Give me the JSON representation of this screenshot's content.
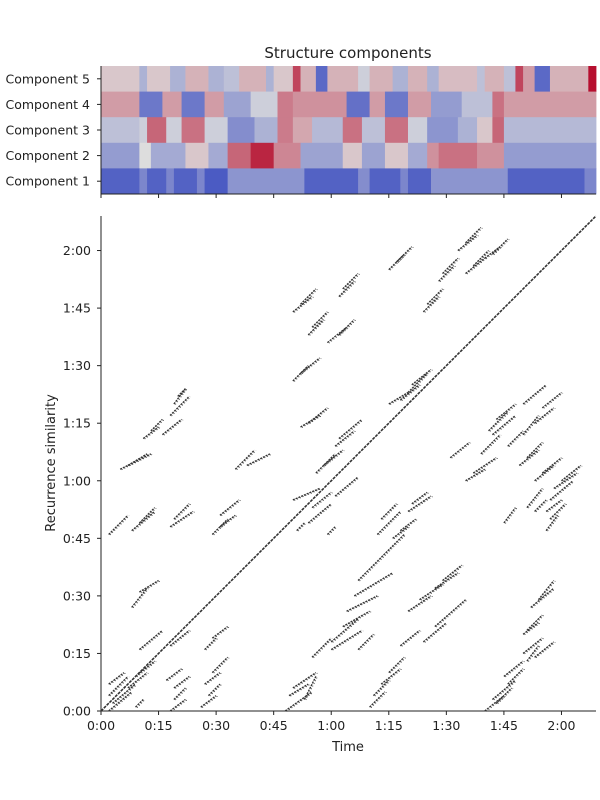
{
  "colors": {
    "cool_low": "#3b4cc0",
    "mid": "#dddddd",
    "warm_high": "#b40426",
    "ink": "#222222",
    "recurrence_mark": "#333333"
  },
  "chart_data": [
    {
      "type": "heatmap",
      "title": "Structure components",
      "colormap": "coolwarm",
      "row_labels": [
        "Component 5",
        "Component 4",
        "Component 3",
        "Component 2",
        "Component 1"
      ],
      "x_range_seconds": [
        0,
        129
      ],
      "value_range": [
        -1,
        1
      ],
      "x_ticks_shared_with_recurrence": true,
      "segments": {
        "Component 5": [
          [
            0,
            10,
            0.1
          ],
          [
            10,
            12,
            -0.3
          ],
          [
            12,
            18,
            0.1
          ],
          [
            18,
            22,
            -0.3
          ],
          [
            22,
            28,
            0.2
          ],
          [
            28,
            32,
            -0.3
          ],
          [
            32,
            36,
            -0.2
          ],
          [
            36,
            43,
            0.2
          ],
          [
            43,
            45,
            -0.3
          ],
          [
            45,
            50,
            0.1
          ],
          [
            50,
            52,
            0.7
          ],
          [
            52,
            56,
            0.2
          ],
          [
            56,
            59,
            -0.8
          ],
          [
            59,
            67,
            0.2
          ],
          [
            67,
            70,
            -0.1
          ],
          [
            70,
            76,
            0.2
          ],
          [
            76,
            80,
            -0.3
          ],
          [
            80,
            85,
            0.2
          ],
          [
            85,
            88,
            -0.3
          ],
          [
            88,
            98,
            0.15
          ],
          [
            98,
            100,
            -0.2
          ],
          [
            100,
            105,
            0.2
          ],
          [
            105,
            108,
            -0.2
          ],
          [
            108,
            110,
            0.7
          ],
          [
            110,
            113,
            0.3
          ],
          [
            113,
            117,
            -0.8
          ],
          [
            117,
            127,
            0.2
          ],
          [
            127,
            129,
            0.95
          ]
        ],
        "Component 4": [
          [
            0,
            10,
            0.3
          ],
          [
            10,
            16,
            -0.7
          ],
          [
            16,
            21,
            0.3
          ],
          [
            21,
            27,
            -0.7
          ],
          [
            27,
            32,
            0.3
          ],
          [
            32,
            39,
            -0.4
          ],
          [
            39,
            46,
            -0.1
          ],
          [
            46,
            50,
            0.45
          ],
          [
            50,
            64,
            0.35
          ],
          [
            64,
            70,
            -0.75
          ],
          [
            70,
            74,
            0.3
          ],
          [
            74,
            80,
            -0.7
          ],
          [
            80,
            86,
            0.3
          ],
          [
            86,
            94,
            -0.45
          ],
          [
            94,
            102,
            -0.2
          ],
          [
            102,
            105,
            0.5
          ],
          [
            105,
            129,
            0.3
          ]
        ],
        "Component 3": [
          [
            0,
            10,
            -0.2
          ],
          [
            10,
            12,
            -0.1
          ],
          [
            12,
            17,
            0.55
          ],
          [
            17,
            21,
            -0.1
          ],
          [
            21,
            27,
            0.5
          ],
          [
            27,
            33,
            -0.1
          ],
          [
            33,
            40,
            -0.55
          ],
          [
            40,
            46,
            -0.3
          ],
          [
            46,
            50,
            0.45
          ],
          [
            50,
            55,
            0.25
          ],
          [
            55,
            63,
            -0.25
          ],
          [
            63,
            68,
            0.5
          ],
          [
            68,
            74,
            -0.2
          ],
          [
            74,
            80,
            0.5
          ],
          [
            80,
            85,
            -0.1
          ],
          [
            85,
            93,
            -0.5
          ],
          [
            93,
            98,
            -0.3
          ],
          [
            98,
            102,
            0.1
          ],
          [
            102,
            105,
            0.55
          ],
          [
            105,
            129,
            -0.25
          ]
        ],
        "Component 2": [
          [
            0,
            10,
            -0.45
          ],
          [
            10,
            13,
            0.0
          ],
          [
            13,
            22,
            -0.35
          ],
          [
            22,
            28,
            0.1
          ],
          [
            28,
            33,
            -0.35
          ],
          [
            33,
            39,
            0.55
          ],
          [
            39,
            45,
            0.85
          ],
          [
            45,
            52,
            0.4
          ],
          [
            52,
            63,
            -0.4
          ],
          [
            63,
            68,
            0.1
          ],
          [
            68,
            74,
            -0.4
          ],
          [
            74,
            80,
            0.1
          ],
          [
            80,
            85,
            -0.35
          ],
          [
            85,
            88,
            0.35
          ],
          [
            88,
            98,
            0.5
          ],
          [
            98,
            105,
            0.35
          ],
          [
            105,
            129,
            -0.45
          ]
        ],
        "Component 1": [
          [
            0,
            10,
            -0.85
          ],
          [
            10,
            12,
            -0.6
          ],
          [
            12,
            17,
            -0.85
          ],
          [
            17,
            19,
            -0.6
          ],
          [
            19,
            25,
            -0.85
          ],
          [
            25,
            27,
            -0.6
          ],
          [
            27,
            33,
            -0.9
          ],
          [
            33,
            53,
            -0.5
          ],
          [
            53,
            67,
            -0.85
          ],
          [
            67,
            70,
            -0.55
          ],
          [
            70,
            78,
            -0.85
          ],
          [
            78,
            80,
            -0.6
          ],
          [
            80,
            86,
            -0.85
          ],
          [
            86,
            106,
            -0.5
          ],
          [
            106,
            126,
            -0.85
          ],
          [
            126,
            129,
            -0.6
          ]
        ]
      }
    },
    {
      "type": "scatter",
      "subtype": "recurrence_matrix",
      "xlabel": "Time",
      "ylabel": "Recurrence similarity",
      "x_range_seconds": [
        0,
        129
      ],
      "y_range_seconds": [
        0,
        129
      ],
      "x_tick_labels": [
        "0:00",
        "0:15",
        "0:30",
        "0:45",
        "1:00",
        "1:15",
        "1:30",
        "1:45",
        "2:00"
      ],
      "y_tick_labels": [
        "0:00",
        "0:15",
        "0:30",
        "0:45",
        "1:00",
        "1:15",
        "1:30",
        "1:45",
        "2:00"
      ],
      "tick_values_seconds": [
        0,
        15,
        30,
        45,
        60,
        75,
        90,
        105,
        120
      ],
      "grid": false,
      "main_diagonal": [
        [
          0,
          0
        ],
        [
          129,
          129
        ]
      ],
      "off_diagonal_segments": [
        [
          2,
          0,
          8,
          5
        ],
        [
          3,
          2,
          9,
          7
        ],
        [
          2,
          4,
          7,
          9
        ],
        [
          9,
          1,
          11,
          3
        ],
        [
          2,
          7,
          6,
          10
        ],
        [
          7,
          6,
          12,
          10
        ],
        [
          9,
          9,
          14,
          13
        ],
        [
          18,
          0,
          22,
          3
        ],
        [
          19,
          3,
          22,
          6
        ],
        [
          19,
          6,
          23,
          9
        ],
        [
          17,
          8,
          21,
          11
        ],
        [
          26,
          1,
          30,
          4
        ],
        [
          28,
          4,
          31,
          7
        ],
        [
          27,
          7,
          31,
          10
        ],
        [
          29,
          10,
          33,
          14
        ],
        [
          10,
          16,
          16,
          21
        ],
        [
          18,
          17,
          23,
          21
        ],
        [
          27,
          16,
          30,
          19
        ],
        [
          29,
          19,
          33,
          22
        ],
        [
          8,
          27,
          12,
          32
        ],
        [
          10,
          31,
          15,
          34
        ],
        [
          48,
          0,
          55,
          5
        ],
        [
          49,
          4,
          54,
          7
        ],
        [
          53,
          3,
          56,
          9
        ],
        [
          50,
          6,
          56,
          10
        ],
        [
          70,
          1,
          74,
          5
        ],
        [
          71,
          4,
          75,
          8
        ],
        [
          73,
          7,
          78,
          11
        ],
        [
          75,
          10,
          79,
          14
        ],
        [
          55,
          14,
          60,
          19
        ],
        [
          60,
          16,
          68,
          21
        ],
        [
          67,
          16,
          71,
          20
        ],
        [
          60,
          18,
          67,
          24
        ],
        [
          63,
          22,
          70,
          26
        ],
        [
          64,
          26,
          72,
          30
        ],
        [
          66,
          30,
          76,
          36
        ],
        [
          67,
          34,
          79,
          46
        ],
        [
          78,
          17,
          83,
          21
        ],
        [
          84,
          18,
          90,
          23
        ],
        [
          87,
          22,
          95,
          29
        ],
        [
          80,
          26,
          86,
          30
        ],
        [
          83,
          29,
          89,
          33
        ],
        [
          2,
          46,
          7,
          51
        ],
        [
          8,
          47,
          14,
          52
        ],
        [
          10,
          49,
          14,
          53
        ],
        [
          18,
          48,
          24,
          52
        ],
        [
          19,
          50,
          23,
          54
        ],
        [
          29,
          46,
          33,
          50
        ],
        [
          31,
          48,
          35,
          51
        ],
        [
          31,
          51,
          36,
          55
        ],
        [
          5,
          63,
          13,
          67
        ],
        [
          7,
          64,
          12,
          67
        ],
        [
          11,
          71,
          15,
          74
        ],
        [
          13,
          73,
          16,
          76
        ],
        [
          16,
          72,
          21,
          76
        ],
        [
          18,
          77,
          23,
          82
        ],
        [
          19,
          80,
          22,
          84
        ],
        [
          20,
          82,
          22,
          84
        ],
        [
          35,
          63,
          40,
          68
        ],
        [
          38,
          64,
          44,
          67
        ],
        [
          54,
          49,
          60,
          54
        ],
        [
          55,
          53,
          60,
          57
        ],
        [
          50,
          55,
          57,
          58
        ],
        [
          61,
          56,
          67,
          61
        ],
        [
          72,
          46,
          78,
          52
        ],
        [
          73,
          50,
          77,
          54
        ],
        [
          80,
          52,
          86,
          56
        ],
        [
          81,
          54,
          85,
          57
        ],
        [
          95,
          60,
          100,
          63
        ],
        [
          97,
          62,
          103,
          66
        ],
        [
          91,
          66,
          96,
          70
        ],
        [
          99,
          67,
          104,
          72
        ],
        [
          102,
          72,
          108,
          77
        ],
        [
          105,
          49,
          108,
          53
        ],
        [
          111,
          53,
          115,
          58
        ],
        [
          113,
          52,
          116,
          55
        ],
        [
          116,
          47,
          119,
          51
        ],
        [
          117,
          50,
          121,
          54
        ],
        [
          116,
          52,
          120,
          55
        ],
        [
          106,
          69,
          110,
          73
        ],
        [
          110,
          72,
          114,
          77
        ],
        [
          75,
          80,
          80,
          83
        ],
        [
          78,
          81,
          83,
          85
        ],
        [
          80,
          83,
          85,
          88
        ],
        [
          81,
          85,
          86,
          89
        ],
        [
          51,
          47,
          53,
          49
        ],
        [
          59,
          46,
          61,
          48
        ],
        [
          56,
          62,
          61,
          67
        ],
        [
          58,
          64,
          63,
          68
        ],
        [
          61,
          69,
          66,
          73
        ],
        [
          62,
          71,
          68,
          76
        ],
        [
          52,
          74,
          57,
          77
        ],
        [
          54,
          75,
          59,
          79
        ],
        [
          76,
          45,
          80,
          48
        ],
        [
          78,
          47,
          82,
          50
        ],
        [
          101,
          73,
          106,
          78
        ],
        [
          103,
          76,
          108,
          80
        ],
        [
          113,
          75,
          118,
          79
        ],
        [
          115,
          79,
          120,
          83
        ],
        [
          110,
          80,
          116,
          85
        ],
        [
          117,
          55,
          123,
          60
        ],
        [
          118,
          58,
          124,
          62
        ],
        [
          120,
          60,
          125,
          64
        ],
        [
          113,
          60,
          118,
          64
        ],
        [
          115,
          62,
          120,
          66
        ],
        [
          109,
          64,
          114,
          68
        ],
        [
          111,
          66,
          115,
          70
        ],
        [
          87,
          32,
          93,
          36
        ],
        [
          89,
          34,
          94,
          38
        ],
        [
          100,
          0,
          105,
          4
        ],
        [
          103,
          2,
          107,
          6
        ],
        [
          102,
          3,
          108,
          8
        ],
        [
          106,
          7,
          110,
          11
        ],
        [
          105,
          9,
          110,
          13
        ],
        [
          111,
          13,
          114,
          17
        ],
        [
          110,
          15,
          115,
          19
        ],
        [
          113,
          14,
          118,
          18
        ],
        [
          110,
          20,
          114,
          23
        ],
        [
          111,
          21,
          115,
          25
        ],
        [
          112,
          27,
          118,
          32
        ],
        [
          114,
          29,
          118,
          34
        ],
        [
          50,
          86,
          54,
          90
        ],
        [
          52,
          88,
          57,
          92
        ],
        [
          59,
          96,
          64,
          100
        ],
        [
          62,
          98,
          66,
          102
        ],
        [
          54,
          98,
          58,
          102
        ],
        [
          55,
          100,
          59,
          104
        ],
        [
          50,
          104,
          55,
          108
        ],
        [
          52,
          106,
          56,
          110
        ],
        [
          62,
          108,
          66,
          112
        ],
        [
          63,
          110,
          67,
          114
        ],
        [
          84,
          104,
          88,
          108
        ],
        [
          85,
          106,
          89,
          110
        ],
        [
          88,
          112,
          92,
          116
        ],
        [
          89,
          114,
          93,
          118
        ],
        [
          75,
          115,
          79,
          119
        ],
        [
          77,
          117,
          81,
          121
        ],
        [
          100,
          118,
          104,
          121
        ],
        [
          102,
          119,
          106,
          123
        ],
        [
          95,
          114,
          100,
          118
        ],
        [
          97,
          116,
          101,
          120
        ],
        [
          93,
          120,
          98,
          124
        ],
        [
          95,
          122,
          99,
          126
        ]
      ]
    }
  ]
}
